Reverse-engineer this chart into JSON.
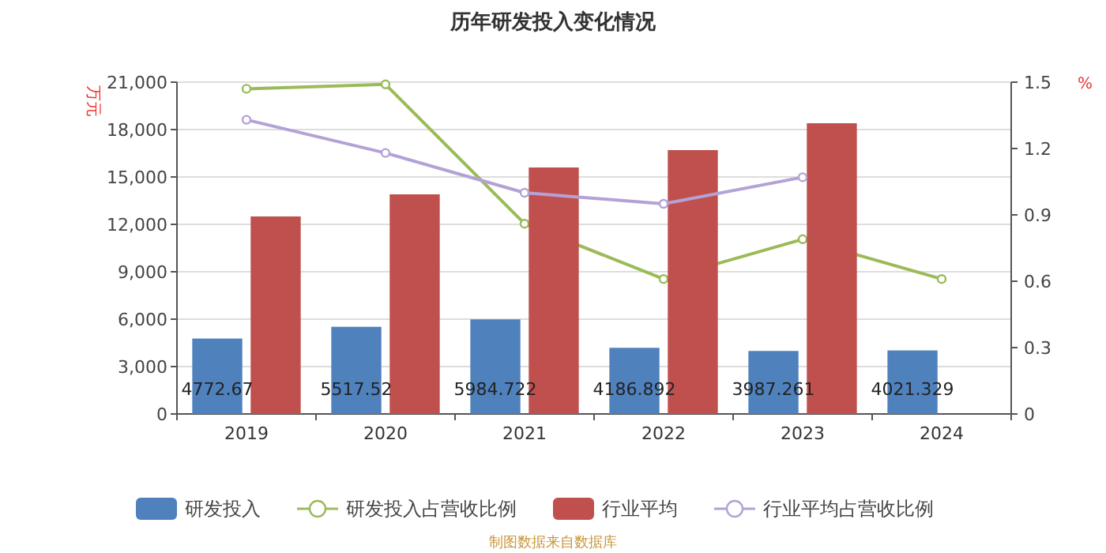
{
  "chart_data": {
    "type": "bar",
    "title": "历年研发投入变化情况",
    "ylabel": "万元",
    "y2label": "%",
    "categories": [
      "2019",
      "2020",
      "2021",
      "2022",
      "2023",
      "2024"
    ],
    "series": [
      {
        "name": "研发投入",
        "color": "#4f81bd",
        "values": [
          4772.67,
          5517.52,
          5984.722,
          4186.892,
          3987.261,
          4021.329
        ],
        "value_labels": [
          "4772.67",
          "5517.52",
          "5984.722",
          "4186.892",
          "3987.261",
          "4021.329"
        ]
      },
      {
        "name": "研发投入占营收比例",
        "type": "line",
        "axis": "y2",
        "color": "#9bbb59",
        "values": [
          1.47,
          1.49,
          0.86,
          0.61,
          0.79,
          0.61
        ]
      },
      {
        "name": "行业平均",
        "color": "#c0504d",
        "values": [
          12500,
          13900,
          15600,
          16700,
          18400,
          null
        ]
      },
      {
        "name": "行业平均占营收比例",
        "type": "line",
        "axis": "y2",
        "color": "#b3a2d6",
        "values": [
          1.33,
          1.18,
          1.0,
          0.95,
          1.07,
          null
        ]
      }
    ],
    "ylim": [
      0,
      21000
    ],
    "yticks": [
      {
        "value": 0,
        "label": "0"
      },
      {
        "value": 3000,
        "label": "3,000"
      },
      {
        "value": 6000,
        "label": "6,000"
      },
      {
        "value": 9000,
        "label": "9,000"
      },
      {
        "value": 12000,
        "label": "12,000"
      },
      {
        "value": 15000,
        "label": "15,000"
      },
      {
        "value": 18000,
        "label": "18,000"
      },
      {
        "value": 21000,
        "label": "21,000"
      }
    ],
    "y2lim": [
      0,
      1.5
    ],
    "y2ticks": [
      0,
      0.3,
      0.6,
      0.9,
      1.2,
      1.5
    ],
    "grid": "y",
    "legend": "bottom",
    "marker": "circle",
    "annotations": [
      "制图数据来自数据库"
    ]
  }
}
